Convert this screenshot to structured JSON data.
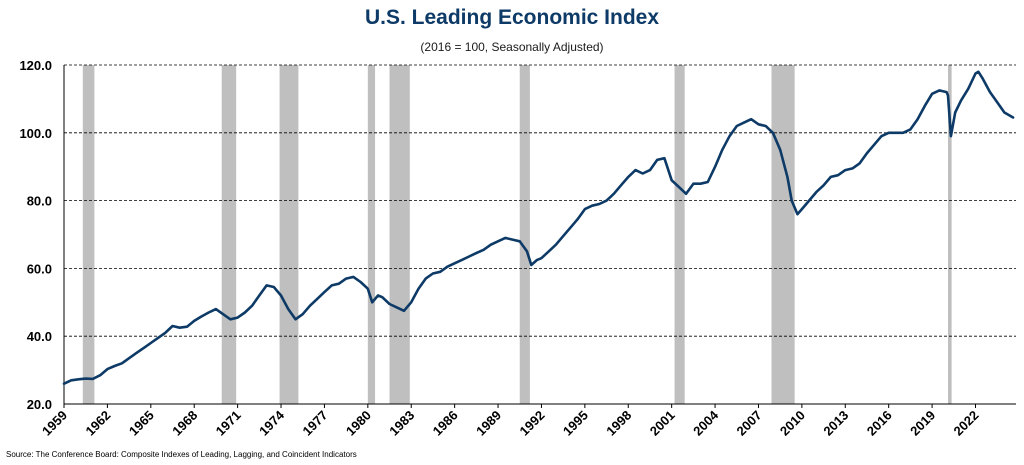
{
  "colors": {
    "line": "#0d3a66",
    "recession": "#bfbfbf",
    "title": "#0d3a66"
  },
  "chart_data": {
    "type": "line",
    "title": "U.S. Leading Economic Index",
    "subtitle": "(2016 = 100, Seasonally Adjusted)",
    "source": "Source: The Conference Board: Composite Indexes of Leading, Lagging, and Coincident Indicators",
    "xlabel": "",
    "ylabel": "",
    "xlim": [
      1959.0,
      2024.8
    ],
    "ylim": [
      20,
      120
    ],
    "y_ticks": [
      "20.0",
      "40.0",
      "60.0",
      "80.0",
      "100.0",
      "120.0"
    ],
    "y_tick_values": [
      20,
      40,
      60,
      80,
      100,
      120
    ],
    "grid": "horizontal dashed",
    "legend": "none",
    "x_ticks": [
      "1959",
      "1962",
      "1965",
      "1968",
      "1971",
      "1974",
      "1977",
      "1980",
      "1983",
      "1986",
      "1989",
      "1992",
      "1995",
      "1998",
      "2001",
      "2004",
      "2007",
      "2010",
      "2013",
      "2016",
      "2019",
      "2022"
    ],
    "recessions": [
      [
        1960.3,
        1961.1
      ],
      [
        1969.9,
        1970.9
      ],
      [
        1973.9,
        1975.2
      ],
      [
        1980.0,
        1980.5
      ],
      [
        1981.5,
        1982.9
      ],
      [
        1990.5,
        1991.2
      ],
      [
        2001.2,
        2001.9
      ],
      [
        2007.9,
        2009.5
      ],
      [
        2020.1,
        2020.35
      ]
    ],
    "series": [
      {
        "values": [
          [
            1959.0,
            26.0
          ],
          [
            1959.5,
            27.0
          ],
          [
            1960.0,
            27.3
          ],
          [
            1960.5,
            27.5
          ],
          [
            1961.0,
            27.4
          ],
          [
            1961.5,
            28.5
          ],
          [
            1962.0,
            30.3
          ],
          [
            1962.5,
            31.2
          ],
          [
            1963.0,
            32.0
          ],
          [
            1963.5,
            33.5
          ],
          [
            1964.0,
            35.0
          ],
          [
            1964.5,
            36.5
          ],
          [
            1965.0,
            38.0
          ],
          [
            1965.5,
            39.5
          ],
          [
            1966.0,
            41.0
          ],
          [
            1966.5,
            43.0
          ],
          [
            1967.0,
            42.5
          ],
          [
            1967.5,
            42.8
          ],
          [
            1968.0,
            44.5
          ],
          [
            1968.5,
            45.8
          ],
          [
            1969.0,
            47.0
          ],
          [
            1969.5,
            48.0
          ],
          [
            1970.0,
            46.5
          ],
          [
            1970.5,
            45.0
          ],
          [
            1971.0,
            45.5
          ],
          [
            1971.5,
            47.0
          ],
          [
            1972.0,
            49.0
          ],
          [
            1972.5,
            52.0
          ],
          [
            1973.0,
            55.0
          ],
          [
            1973.5,
            54.5
          ],
          [
            1974.0,
            52.0
          ],
          [
            1974.5,
            48.0
          ],
          [
            1975.0,
            45.0
          ],
          [
            1975.5,
            46.5
          ],
          [
            1976.0,
            49.0
          ],
          [
            1976.5,
            51.0
          ],
          [
            1977.0,
            53.0
          ],
          [
            1977.5,
            55.0
          ],
          [
            1978.0,
            55.5
          ],
          [
            1978.5,
            57.0
          ],
          [
            1979.0,
            57.5
          ],
          [
            1979.5,
            56.0
          ],
          [
            1980.0,
            54.0
          ],
          [
            1980.3,
            50.0
          ],
          [
            1980.7,
            52.0
          ],
          [
            1981.0,
            51.5
          ],
          [
            1981.5,
            49.5
          ],
          [
            1982.0,
            48.5
          ],
          [
            1982.5,
            47.5
          ],
          [
            1983.0,
            50.0
          ],
          [
            1983.5,
            54.0
          ],
          [
            1984.0,
            57.0
          ],
          [
            1984.5,
            58.5
          ],
          [
            1985.0,
            59.0
          ],
          [
            1985.5,
            60.5
          ],
          [
            1986.0,
            61.5
          ],
          [
            1986.5,
            62.5
          ],
          [
            1987.0,
            63.5
          ],
          [
            1987.5,
            64.5
          ],
          [
            1988.0,
            65.5
          ],
          [
            1988.5,
            67.0
          ],
          [
            1989.0,
            68.0
          ],
          [
            1989.5,
            69.0
          ],
          [
            1990.0,
            68.5
          ],
          [
            1990.5,
            68.0
          ],
          [
            1991.0,
            65.0
          ],
          [
            1991.3,
            61.0
          ],
          [
            1991.7,
            62.5
          ],
          [
            1992.0,
            63.0
          ],
          [
            1992.5,
            65.0
          ],
          [
            1993.0,
            67.0
          ],
          [
            1993.5,
            69.5
          ],
          [
            1994.0,
            72.0
          ],
          [
            1994.5,
            74.5
          ],
          [
            1995.0,
            77.5
          ],
          [
            1995.5,
            78.5
          ],
          [
            1996.0,
            79.0
          ],
          [
            1996.5,
            80.0
          ],
          [
            1997.0,
            82.0
          ],
          [
            1997.5,
            84.5
          ],
          [
            1998.0,
            87.0
          ],
          [
            1998.5,
            89.0
          ],
          [
            1999.0,
            88.0
          ],
          [
            1999.5,
            89.0
          ],
          [
            2000.0,
            92.0
          ],
          [
            2000.5,
            92.5
          ],
          [
            2001.0,
            86.0
          ],
          [
            2001.5,
            84.0
          ],
          [
            2002.0,
            82.0
          ],
          [
            2002.5,
            85.0
          ],
          [
            2003.0,
            85.0
          ],
          [
            2003.5,
            85.5
          ],
          [
            2004.0,
            90.0
          ],
          [
            2004.5,
            95.0
          ],
          [
            2005.0,
            99.0
          ],
          [
            2005.5,
            102.0
          ],
          [
            2006.0,
            103.0
          ],
          [
            2006.5,
            104.0
          ],
          [
            2007.0,
            102.5
          ],
          [
            2007.5,
            102.0
          ],
          [
            2008.0,
            100.0
          ],
          [
            2008.5,
            95.0
          ],
          [
            2009.0,
            87.0
          ],
          [
            2009.3,
            80.0
          ],
          [
            2009.7,
            76.0
          ],
          [
            2010.0,
            77.5
          ],
          [
            2010.5,
            80.0
          ],
          [
            2011.0,
            82.5
          ],
          [
            2011.5,
            84.5
          ],
          [
            2012.0,
            87.0
          ],
          [
            2012.5,
            87.5
          ],
          [
            2013.0,
            89.0
          ],
          [
            2013.5,
            89.5
          ],
          [
            2014.0,
            91.0
          ],
          [
            2014.5,
            94.0
          ],
          [
            2015.0,
            96.5
          ],
          [
            2015.5,
            99.0
          ],
          [
            2016.0,
            100.0
          ],
          [
            2016.5,
            100.0
          ],
          [
            2017.0,
            100.0
          ],
          [
            2017.5,
            101.0
          ],
          [
            2018.0,
            104.0
          ],
          [
            2018.5,
            108.0
          ],
          [
            2019.0,
            111.5
          ],
          [
            2019.5,
            112.5
          ],
          [
            2020.0,
            112.0
          ],
          [
            2020.1,
            111.0
          ],
          [
            2020.3,
            99.0
          ],
          [
            2020.6,
            106.0
          ],
          [
            2021.0,
            109.5
          ],
          [
            2021.5,
            113.0
          ],
          [
            2022.0,
            117.5
          ],
          [
            2022.2,
            118.0
          ],
          [
            2022.5,
            116.0
          ],
          [
            2023.0,
            112.0
          ],
          [
            2023.5,
            109.0
          ],
          [
            2024.0,
            106.0
          ],
          [
            2024.6,
            104.5
          ]
        ]
      }
    ]
  }
}
